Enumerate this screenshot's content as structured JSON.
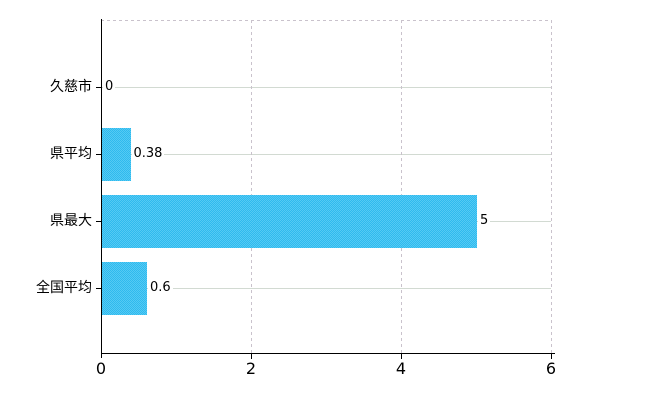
{
  "chart_data": {
    "type": "bar",
    "orientation": "horizontal",
    "title": "",
    "xlabel": "",
    "ylabel": "",
    "categories": [
      "久慈市",
      "県平均",
      "県最大",
      "全国平均"
    ],
    "values": [
      0,
      0.38,
      5,
      0.6
    ],
    "value_labels": [
      "0",
      "0.38",
      "5",
      "0.6"
    ],
    "xlim": [
      0,
      6
    ],
    "x_ticks": [
      0,
      2,
      4,
      6
    ],
    "x_tick_labels": [
      "0",
      "2",
      "4",
      "6"
    ],
    "grid": true,
    "legend": false,
    "colors": {
      "bar_fill_average": "#41C2F1",
      "bar_fill_dither_light": "#55CAF4",
      "bar_fill_dither_dark": "#2FBAEE",
      "h_gridline": "#D2DAD2",
      "v_gridline": "#C9C2CC",
      "axis": "#000000",
      "text": "#000000",
      "background": "#FFFFFF"
    }
  }
}
